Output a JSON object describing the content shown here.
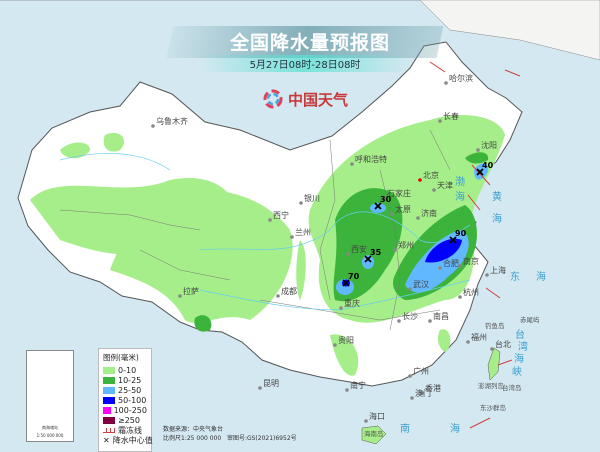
{
  "header": {
    "title": "全国降水量预报图",
    "subtitle": "5月27日08时-28日08时",
    "logo_text": "中国天气"
  },
  "colors": {
    "sea": "#d3e8f1",
    "land": "#ffffff",
    "rain_0_10": "#a6ee8a",
    "rain_10_25": "#3cb43c",
    "rain_25_50": "#62b8ff",
    "rain_50_100": "#0000fe",
    "rain_100_250": "#fe00fe",
    "rain_250_plus": "#800040",
    "frost_line": "#d04040"
  },
  "legend": {
    "title": "图例(毫米)",
    "items": [
      {
        "label": "0-10",
        "color": "#a6ee8a"
      },
      {
        "label": "10-25",
        "color": "#3cb43c"
      },
      {
        "label": "25-50",
        "color": "#62b8ff"
      },
      {
        "label": "50-100",
        "color": "#0000fe"
      },
      {
        "label": "100-250",
        "color": "#fe00fe"
      },
      {
        "label": "≥250",
        "color": "#800040"
      }
    ],
    "frost_label": "霜冻线",
    "center_label": "降水中心值"
  },
  "inset": {
    "label": "南海诸岛",
    "scale": "1:50 000 000"
  },
  "credits": {
    "source": "数据来源：中央气象台",
    "scale": "比例尺1:25 000 000",
    "approval": "审图号:GS(2021)6952号"
  },
  "cities": [
    "乌鲁木齐",
    "哈尔滨",
    "长春",
    "沈阳",
    "呼和浩特",
    "北京",
    "天津",
    "石家庄",
    "银川",
    "太原",
    "济南",
    "西宁",
    "兰州",
    "西安",
    "郑州",
    "合肥",
    "南京",
    "上海",
    "成都",
    "拉萨",
    "武汉",
    "重庆",
    "杭州",
    "长沙",
    "南昌",
    "贵阳",
    "福州",
    "台北",
    "昆明",
    "广州",
    "南宁",
    "香港",
    "澳门",
    "海口"
  ],
  "seas": [
    "渤",
    "海",
    "黄",
    "海",
    "东",
    "海",
    "南",
    "海",
    "台",
    "湾",
    "海",
    "峡"
  ],
  "islands": [
    "钓鱼岛",
    "赤尾屿",
    "台湾岛",
    "澎湖列岛",
    "东沙群岛",
    "海南岛"
  ],
  "rain_centers": [
    {
      "value": "30",
      "city_near": "太原"
    },
    {
      "value": "35",
      "city_near": "西安"
    },
    {
      "value": "70",
      "city_near": "重庆"
    },
    {
      "value": "90",
      "city_near": "南京"
    },
    {
      "value": "40",
      "city_near": "沈阳"
    }
  ]
}
